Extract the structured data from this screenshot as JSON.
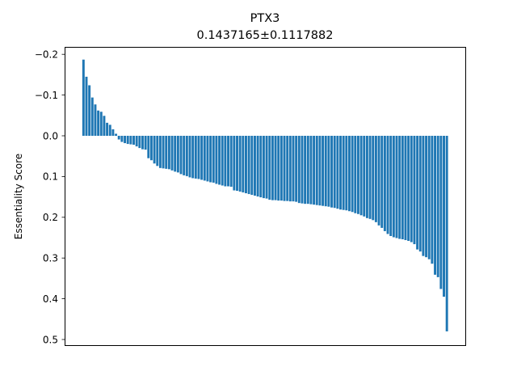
{
  "chart_data": {
    "type": "bar",
    "title": "PTX3",
    "subtitle": "0.1437165±0.1117882",
    "xlabel": "",
    "ylabel": "Essentiality Score",
    "ylim": [
      -0.2,
      0.5
    ],
    "y_inverted": true,
    "yticks": [
      -0.2,
      -0.1,
      0.0,
      0.1,
      0.2,
      0.3,
      0.4,
      0.5
    ],
    "ytick_labels": [
      "−0.2",
      "−0.1",
      "0.0",
      "0.1",
      "0.2",
      "0.3",
      "0.4",
      "0.5"
    ],
    "x_ticks_visible": false,
    "grid": false,
    "bar_color": "#1f77b4",
    "values": [
      -0.187,
      -0.145,
      -0.124,
      -0.094,
      -0.077,
      -0.062,
      -0.059,
      -0.049,
      -0.032,
      -0.027,
      -0.016,
      -0.005,
      0.009,
      0.015,
      0.018,
      0.02,
      0.021,
      0.022,
      0.026,
      0.03,
      0.033,
      0.034,
      0.055,
      0.06,
      0.068,
      0.074,
      0.079,
      0.08,
      0.081,
      0.082,
      0.085,
      0.088,
      0.09,
      0.094,
      0.097,
      0.099,
      0.102,
      0.104,
      0.105,
      0.106,
      0.108,
      0.11,
      0.112,
      0.114,
      0.115,
      0.118,
      0.12,
      0.122,
      0.124,
      0.124,
      0.125,
      0.134,
      0.135,
      0.137,
      0.139,
      0.141,
      0.143,
      0.145,
      0.147,
      0.149,
      0.151,
      0.153,
      0.154,
      0.157,
      0.158,
      0.158,
      0.159,
      0.159,
      0.16,
      0.16,
      0.161,
      0.161,
      0.162,
      0.165,
      0.166,
      0.167,
      0.167,
      0.168,
      0.169,
      0.17,
      0.171,
      0.172,
      0.173,
      0.174,
      0.176,
      0.177,
      0.179,
      0.181,
      0.182,
      0.183,
      0.185,
      0.187,
      0.19,
      0.192,
      0.195,
      0.198,
      0.202,
      0.204,
      0.207,
      0.212,
      0.22,
      0.226,
      0.234,
      0.241,
      0.246,
      0.249,
      0.251,
      0.253,
      0.254,
      0.256,
      0.258,
      0.261,
      0.266,
      0.279,
      0.284,
      0.295,
      0.298,
      0.303,
      0.314,
      0.341,
      0.347,
      0.376,
      0.395,
      0.48
    ]
  }
}
